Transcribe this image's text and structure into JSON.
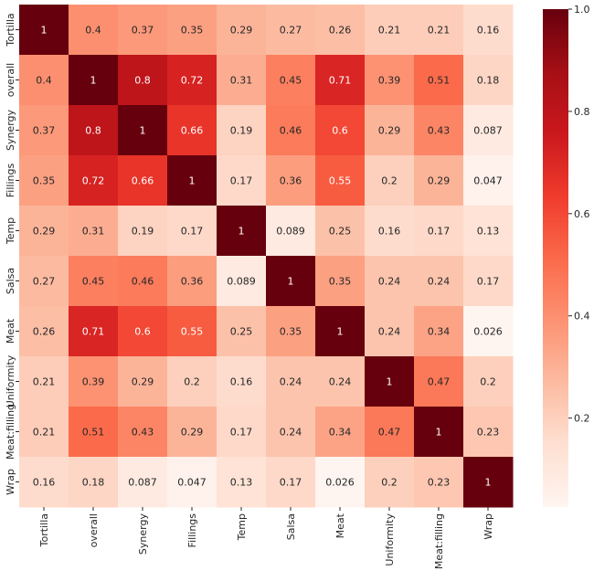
{
  "chart_data": {
    "type": "heatmap",
    "colormap": "Reds",
    "vmin": 0.026,
    "vmax": 1.0,
    "categories": [
      "Tortilla",
      "overall",
      "Synergy",
      "Fillings",
      "Temp",
      "Salsa",
      "Meat",
      "Uniformity",
      "Meat:filling",
      "Wrap"
    ],
    "values": [
      [
        1,
        0.4,
        0.37,
        0.35,
        0.29,
        0.27,
        0.26,
        0.21,
        0.21,
        0.16
      ],
      [
        0.4,
        1,
        0.8,
        0.72,
        0.31,
        0.45,
        0.71,
        0.39,
        0.51,
        0.18
      ],
      [
        0.37,
        0.8,
        1,
        0.66,
        0.19,
        0.46,
        0.6,
        0.29,
        0.43,
        0.087
      ],
      [
        0.35,
        0.72,
        0.66,
        1,
        0.17,
        0.36,
        0.55,
        0.2,
        0.29,
        0.047
      ],
      [
        0.29,
        0.31,
        0.19,
        0.17,
        1,
        0.089,
        0.25,
        0.16,
        0.17,
        0.13
      ],
      [
        0.27,
        0.45,
        0.46,
        0.36,
        0.089,
        1,
        0.35,
        0.24,
        0.24,
        0.17
      ],
      [
        0.26,
        0.71,
        0.6,
        0.55,
        0.25,
        0.35,
        1,
        0.24,
        0.34,
        0.026
      ],
      [
        0.21,
        0.39,
        0.29,
        0.2,
        0.16,
        0.24,
        0.24,
        1,
        0.47,
        0.2
      ],
      [
        0.21,
        0.51,
        0.43,
        0.29,
        0.17,
        0.24,
        0.34,
        0.47,
        1,
        0.23
      ],
      [
        0.16,
        0.18,
        0.087,
        0.047,
        0.13,
        0.17,
        0.026,
        0.2,
        0.23,
        1
      ]
    ],
    "colorbar_ticks": [
      "0.2",
      "0.4",
      "0.6",
      "0.8",
      "1.0"
    ],
    "colorbar_tick_values": [
      0.2,
      0.4,
      0.6,
      0.8,
      1.0
    ],
    "annotations": true,
    "title": "",
    "xlabel": "",
    "ylabel": ""
  }
}
